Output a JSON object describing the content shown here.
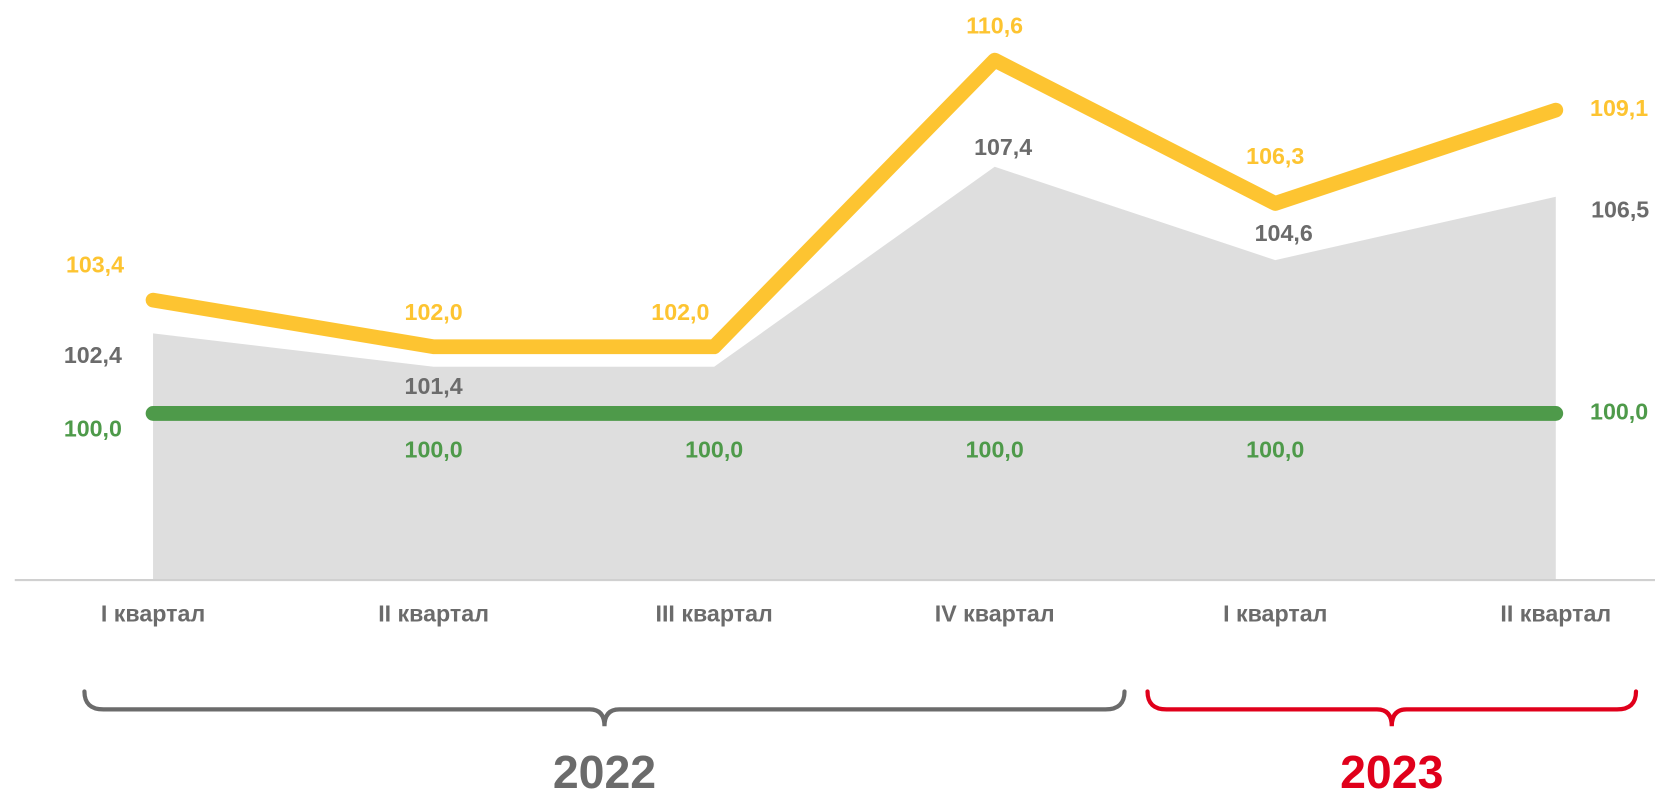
{
  "chart_data": {
    "type": "line",
    "categories": [
      "I квартал",
      "II квартал",
      "III квартал",
      "IV квартал",
      "I квартал",
      "II квартал"
    ],
    "groups": [
      {
        "label": "2022",
        "color": "#6b6b6b",
        "from": 0,
        "to": 3
      },
      {
        "label": "2023",
        "color": "#e0001b",
        "from": 4,
        "to": 5
      }
    ],
    "series": [
      {
        "kind": "area",
        "color": "#dedede",
        "label_color": "#6b6b6b",
        "values": [
          102.4,
          101.4,
          101.4,
          107.4,
          104.6,
          106.5
        ],
        "value_labels": [
          "102,4",
          "101,4",
          null,
          "107,4",
          "104,6",
          "106,5"
        ]
      },
      {
        "kind": "line",
        "color": "#fdc431",
        "label_color": "#fdc431",
        "values": [
          103.4,
          102.0,
          102.0,
          110.6,
          106.3,
          109.1
        ],
        "value_labels": [
          "103,4",
          "102,0",
          "102,0",
          "110,6",
          "106,3",
          "109,1"
        ]
      },
      {
        "kind": "line",
        "color": "#4e9a4a",
        "label_color": "#4e9a4a",
        "values": [
          100.0,
          100.0,
          100.0,
          100.0,
          100.0,
          100.0
        ],
        "value_labels": [
          "100,0",
          "100,0",
          "100,0",
          "100,0",
          "100,0",
          "100,0"
        ]
      }
    ],
    "ylim": [
      95,
      112.4
    ]
  }
}
